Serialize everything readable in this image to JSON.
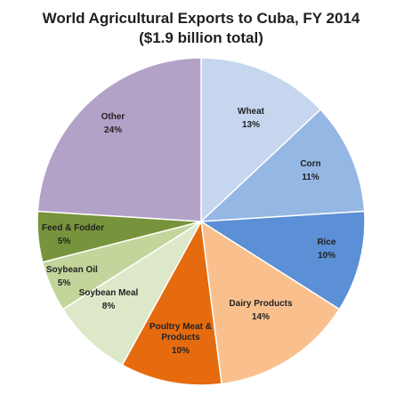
{
  "chart_data": {
    "type": "pie",
    "title": "World Agricultural Exports to Cuba, FY 2014",
    "subtitle": "($1.9 billion total)",
    "slices": [
      {
        "name": "Wheat",
        "value": 13,
        "label": "13%",
        "color": "#c5d6ee"
      },
      {
        "name": "Corn",
        "value": 11,
        "label": "11%",
        "color": "#95b7e4"
      },
      {
        "name": "Rice",
        "value": 10,
        "label": "10%",
        "color": "#5b8fd6"
      },
      {
        "name": "Dairy Products",
        "value": 14,
        "label": "14%",
        "color": "#f9c08e"
      },
      {
        "name": "Poultry Meat & Products",
        "value": 10,
        "label": "10%",
        "color": "#e56b0e"
      },
      {
        "name": "Soybean Meal",
        "value": 8,
        "label": "8%",
        "color": "#dde8c8"
      },
      {
        "name": "Soybean Oil",
        "value": 5,
        "label": "5%",
        "color": "#c2d59b"
      },
      {
        "name": "Feed & Fodder",
        "value": 5,
        "label": "5%",
        "color": "#77933c"
      },
      {
        "name": "Other",
        "value": 24,
        "label": "24%",
        "color": "#b3a2c7"
      }
    ]
  }
}
